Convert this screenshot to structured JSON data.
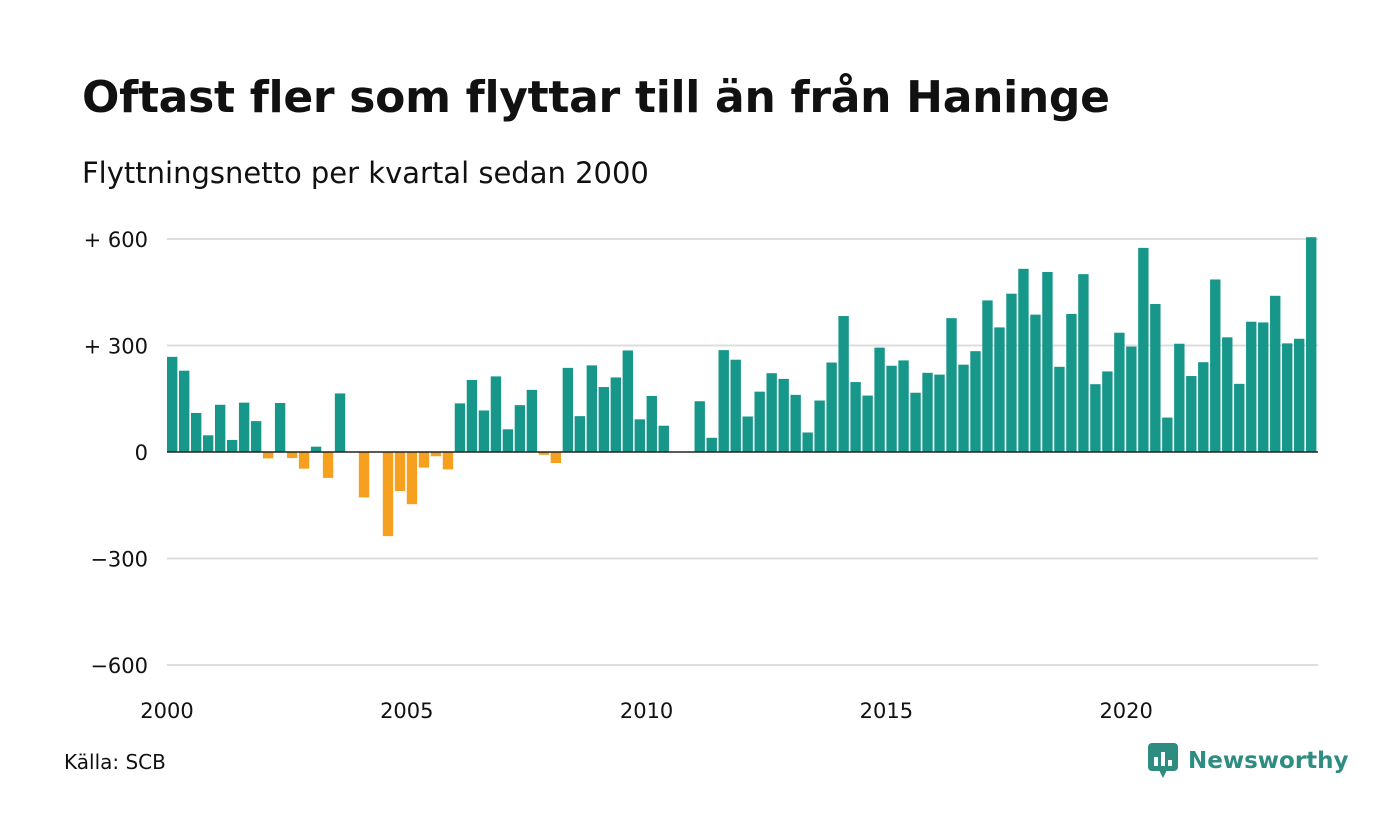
{
  "title": "Oftast fler som flyttar till än från Haninge",
  "subtitle": "Flyttningsnetto per kvartal sedan 2000",
  "source": "Källa: SCB",
  "brand": "Newsworthy",
  "colors": {
    "positive": "#17978a",
    "negative": "#f5a01e",
    "grid": "#dddddd",
    "axis": "#222222",
    "brand": "#2e8c80"
  },
  "chart_data": {
    "type": "bar",
    "title": "Oftast fler som flyttar till än från Haninge",
    "subtitle": "Flyttningsnetto per kvartal sedan 2000",
    "xlabel": "",
    "ylabel": "",
    "ylim": [
      -600,
      600
    ],
    "y_ticks": [
      {
        "value": 600,
        "label": "+ 600"
      },
      {
        "value": 300,
        "label": "+ 300"
      },
      {
        "value": 0,
        "label": "0"
      },
      {
        "value": -300,
        "label": "−300"
      },
      {
        "value": -600,
        "label": "−600"
      }
    ],
    "x_ticks": [
      "2000",
      "2005",
      "2010",
      "2015",
      "2020"
    ],
    "x_start_year": 2000,
    "grid": true,
    "legend": "none",
    "values": [
      268,
      229,
      110,
      47,
      133,
      34,
      139,
      87,
      -18,
      138,
      -17,
      -47,
      15,
      -73,
      165,
      0,
      -128,
      0,
      -237,
      -110,
      -147,
      -44,
      -12,
      -49,
      137,
      203,
      117,
      213,
      64,
      132,
      175,
      -8,
      -31,
      237,
      101,
      244,
      183,
      210,
      286,
      92,
      158,
      74,
      0,
      0,
      143,
      40,
      287,
      260,
      100,
      170,
      222,
      206,
      161,
      55,
      145,
      252,
      383,
      197,
      159,
      294,
      243,
      258,
      167,
      223,
      218,
      377,
      246,
      284,
      427,
      351,
      446,
      516,
      387,
      507,
      240,
      389,
      501,
      191,
      227,
      336,
      297,
      575,
      417,
      97,
      305,
      214,
      253,
      486,
      323,
      192,
      367,
      365,
      440,
      306,
      319,
      605
    ]
  }
}
